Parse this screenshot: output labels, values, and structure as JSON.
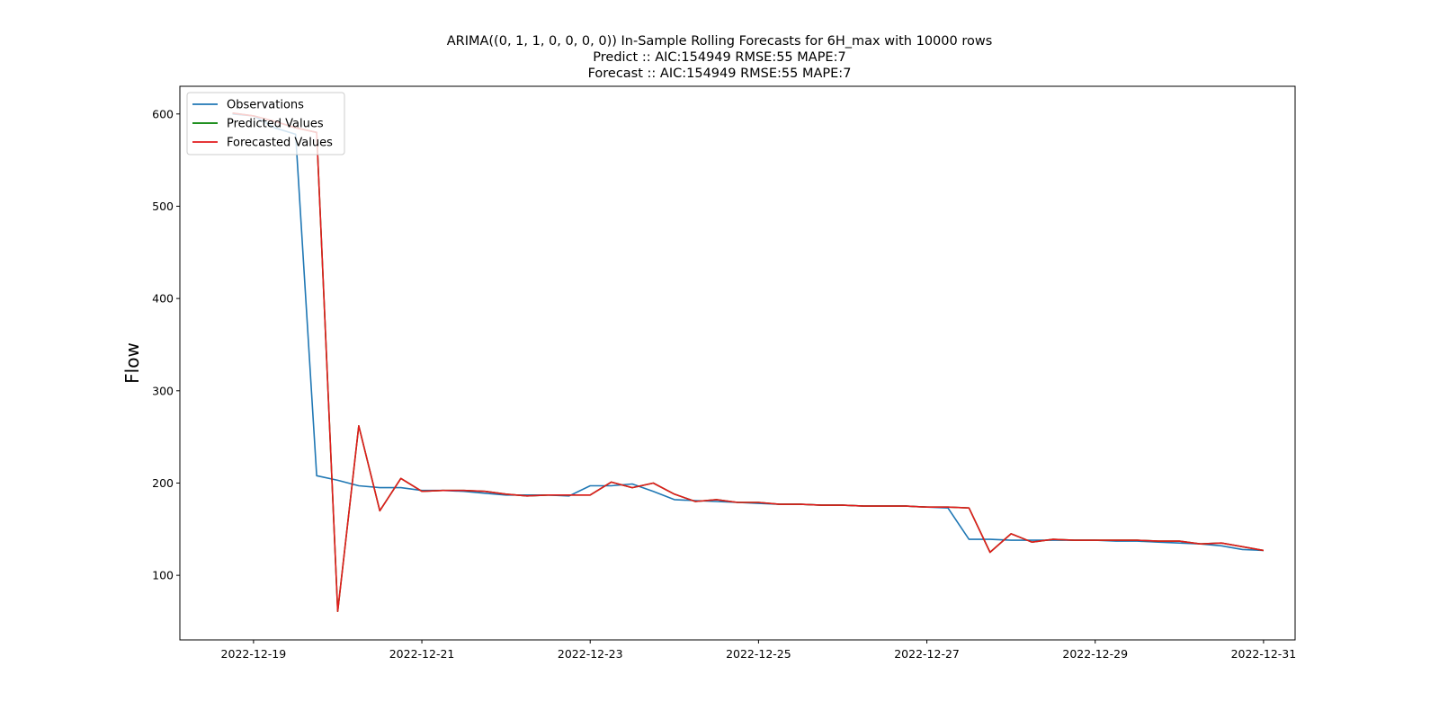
{
  "chart_data": {
    "type": "line",
    "title_lines": [
      "ARIMA((0, 1, 1, 0, 0, 0, 0)) In-Sample Rolling Forecasts for 6H_max with 10000 rows",
      "Predict :: AIC:154949 RMSE:55 MAPE:7",
      "Forecast :: AIC:154949 RMSE:55 MAPE:7"
    ],
    "xlabel": "",
    "ylabel": "Flow",
    "x_tick_labels": [
      "2022-12-19",
      "2022-12-21",
      "2022-12-23",
      "2022-12-25",
      "2022-12-27",
      "2022-12-29",
      "2022-12-31"
    ],
    "y_ticks": [
      100,
      200,
      300,
      400,
      500,
      600
    ],
    "x_range": [
      "2022-12-18T03:00",
      "2022-12-31T09:00"
    ],
    "ylim": [
      30,
      630
    ],
    "grid": false,
    "legend_position": "top-left",
    "series": [
      {
        "name": "Observations",
        "color": "#1f77b4",
        "points": [
          [
            "2022-12-18T18:00",
            600
          ],
          [
            "2022-12-19T00:00",
            598
          ],
          [
            "2022-12-19T06:00",
            585
          ],
          [
            "2022-12-19T12:00",
            578
          ],
          [
            "2022-12-19T18:00",
            208
          ],
          [
            "2022-12-20T00:00",
            203
          ],
          [
            "2022-12-20T06:00",
            197
          ],
          [
            "2022-12-20T12:00",
            195
          ],
          [
            "2022-12-20T18:00",
            195
          ],
          [
            "2022-12-21T00:00",
            192
          ],
          [
            "2022-12-21T06:00",
            192
          ],
          [
            "2022-12-21T12:00",
            191
          ],
          [
            "2022-12-21T18:00",
            189
          ],
          [
            "2022-12-22T00:00",
            187
          ],
          [
            "2022-12-22T06:00",
            187
          ],
          [
            "2022-12-22T12:00",
            187
          ],
          [
            "2022-12-22T18:00",
            186
          ],
          [
            "2022-12-23T00:00",
            197
          ],
          [
            "2022-12-23T06:00",
            197
          ],
          [
            "2022-12-23T12:00",
            199
          ],
          [
            "2022-12-23T18:00",
            191
          ],
          [
            "2022-12-24T00:00",
            182
          ],
          [
            "2022-12-24T06:00",
            181
          ],
          [
            "2022-12-24T12:00",
            180
          ],
          [
            "2022-12-24T18:00",
            179
          ],
          [
            "2022-12-25T00:00",
            178
          ],
          [
            "2022-12-25T06:00",
            177
          ],
          [
            "2022-12-25T12:00",
            177
          ],
          [
            "2022-12-25T18:00",
            176
          ],
          [
            "2022-12-26T00:00",
            176
          ],
          [
            "2022-12-26T06:00",
            175
          ],
          [
            "2022-12-26T12:00",
            175
          ],
          [
            "2022-12-26T18:00",
            175
          ],
          [
            "2022-12-27T00:00",
            174
          ],
          [
            "2022-12-27T06:00",
            173
          ],
          [
            "2022-12-27T12:00",
            139
          ],
          [
            "2022-12-27T18:00",
            139
          ],
          [
            "2022-12-28T00:00",
            138
          ],
          [
            "2022-12-28T06:00",
            138
          ],
          [
            "2022-12-28T12:00",
            138
          ],
          [
            "2022-12-28T18:00",
            138
          ],
          [
            "2022-12-29T00:00",
            138
          ],
          [
            "2022-12-29T06:00",
            137
          ],
          [
            "2022-12-29T12:00",
            137
          ],
          [
            "2022-12-29T18:00",
            136
          ],
          [
            "2022-12-30T00:00",
            135
          ],
          [
            "2022-12-30T06:00",
            134
          ],
          [
            "2022-12-30T12:00",
            132
          ],
          [
            "2022-12-30T18:00",
            128
          ],
          [
            "2022-12-31T00:00",
            127
          ]
        ]
      },
      {
        "name": "Predicted Values",
        "color": "#008000",
        "points": [
          [
            "2022-12-18T18:00",
            601
          ],
          [
            "2022-12-19T00:00",
            598
          ],
          [
            "2022-12-19T06:00",
            592
          ],
          [
            "2022-12-19T12:00",
            585
          ],
          [
            "2022-12-19T18:00",
            580
          ],
          [
            "2022-12-20T00:00",
            61
          ],
          [
            "2022-12-20T06:00",
            262
          ],
          [
            "2022-12-20T12:00",
            170
          ],
          [
            "2022-12-20T18:00",
            205
          ],
          [
            "2022-12-21T00:00",
            191
          ],
          [
            "2022-12-21T06:00",
            192
          ],
          [
            "2022-12-21T12:00",
            192
          ],
          [
            "2022-12-21T18:00",
            191
          ],
          [
            "2022-12-22T00:00",
            188
          ],
          [
            "2022-12-22T06:00",
            186
          ],
          [
            "2022-12-22T12:00",
            187
          ],
          [
            "2022-12-22T18:00",
            187
          ],
          [
            "2022-12-23T00:00",
            187
          ],
          [
            "2022-12-23T06:00",
            201
          ],
          [
            "2022-12-23T12:00",
            195
          ],
          [
            "2022-12-23T18:00",
            200
          ],
          [
            "2022-12-24T00:00",
            188
          ],
          [
            "2022-12-24T06:00",
            180
          ],
          [
            "2022-12-24T12:00",
            182
          ],
          [
            "2022-12-24T18:00",
            179
          ],
          [
            "2022-12-25T00:00",
            179
          ],
          [
            "2022-12-25T06:00",
            177
          ],
          [
            "2022-12-25T12:00",
            177
          ],
          [
            "2022-12-25T18:00",
            176
          ],
          [
            "2022-12-26T00:00",
            176
          ],
          [
            "2022-12-26T06:00",
            175
          ],
          [
            "2022-12-26T12:00",
            175
          ],
          [
            "2022-12-26T18:00",
            175
          ],
          [
            "2022-12-27T00:00",
            174
          ],
          [
            "2022-12-27T06:00",
            174
          ],
          [
            "2022-12-27T12:00",
            173
          ],
          [
            "2022-12-27T18:00",
            125
          ],
          [
            "2022-12-28T00:00",
            145
          ],
          [
            "2022-12-28T06:00",
            136
          ],
          [
            "2022-12-28T12:00",
            139
          ],
          [
            "2022-12-28T18:00",
            138
          ],
          [
            "2022-12-29T00:00",
            138
          ],
          [
            "2022-12-29T06:00",
            138
          ],
          [
            "2022-12-29T12:00",
            138
          ],
          [
            "2022-12-29T18:00",
            137
          ],
          [
            "2022-12-30T00:00",
            137
          ],
          [
            "2022-12-30T06:00",
            134
          ],
          [
            "2022-12-30T12:00",
            135
          ],
          [
            "2022-12-30T18:00",
            131
          ],
          [
            "2022-12-31T00:00",
            127
          ]
        ]
      },
      {
        "name": "Forecasted Values",
        "color": "#e31a1c",
        "points": [
          [
            "2022-12-18T18:00",
            601
          ],
          [
            "2022-12-19T00:00",
            598
          ],
          [
            "2022-12-19T06:00",
            592
          ],
          [
            "2022-12-19T12:00",
            585
          ],
          [
            "2022-12-19T18:00",
            580
          ],
          [
            "2022-12-20T00:00",
            61
          ],
          [
            "2022-12-20T06:00",
            262
          ],
          [
            "2022-12-20T12:00",
            170
          ],
          [
            "2022-12-20T18:00",
            205
          ],
          [
            "2022-12-21T00:00",
            191
          ],
          [
            "2022-12-21T06:00",
            192
          ],
          [
            "2022-12-21T12:00",
            192
          ],
          [
            "2022-12-21T18:00",
            191
          ],
          [
            "2022-12-22T00:00",
            188
          ],
          [
            "2022-12-22T06:00",
            186
          ],
          [
            "2022-12-22T12:00",
            187
          ],
          [
            "2022-12-22T18:00",
            187
          ],
          [
            "2022-12-23T00:00",
            187
          ],
          [
            "2022-12-23T06:00",
            201
          ],
          [
            "2022-12-23T12:00",
            195
          ],
          [
            "2022-12-23T18:00",
            200
          ],
          [
            "2022-12-24T00:00",
            188
          ],
          [
            "2022-12-24T06:00",
            180
          ],
          [
            "2022-12-24T12:00",
            182
          ],
          [
            "2022-12-24T18:00",
            179
          ],
          [
            "2022-12-25T00:00",
            179
          ],
          [
            "2022-12-25T06:00",
            177
          ],
          [
            "2022-12-25T12:00",
            177
          ],
          [
            "2022-12-25T18:00",
            176
          ],
          [
            "2022-12-26T00:00",
            176
          ],
          [
            "2022-12-26T06:00",
            175
          ],
          [
            "2022-12-26T12:00",
            175
          ],
          [
            "2022-12-26T18:00",
            175
          ],
          [
            "2022-12-27T00:00",
            174
          ],
          [
            "2022-12-27T06:00",
            174
          ],
          [
            "2022-12-27T12:00",
            173
          ],
          [
            "2022-12-27T18:00",
            125
          ],
          [
            "2022-12-28T00:00",
            145
          ],
          [
            "2022-12-28T06:00",
            136
          ],
          [
            "2022-12-28T12:00",
            139
          ],
          [
            "2022-12-28T18:00",
            138
          ],
          [
            "2022-12-29T00:00",
            138
          ],
          [
            "2022-12-29T06:00",
            138
          ],
          [
            "2022-12-29T12:00",
            138
          ],
          [
            "2022-12-29T18:00",
            137
          ],
          [
            "2022-12-30T00:00",
            137
          ],
          [
            "2022-12-30T06:00",
            134
          ],
          [
            "2022-12-30T12:00",
            135
          ],
          [
            "2022-12-30T18:00",
            131
          ],
          [
            "2022-12-31T00:00",
            127
          ]
        ]
      }
    ]
  }
}
